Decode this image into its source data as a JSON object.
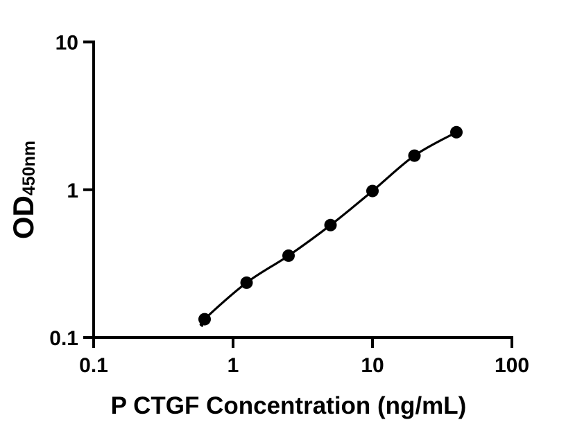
{
  "figure": {
    "background": "#ffffff",
    "ink_color": "#000000"
  },
  "chart_data": {
    "type": "scatter",
    "title": "",
    "xlabel": "P CTGF Concentration (ng/mL)",
    "ylabel_main": "OD",
    "ylabel_sub": "450nm",
    "x_scale": "log10",
    "y_scale": "log10",
    "xlim": [
      0.1,
      100
    ],
    "ylim": [
      0.1,
      10
    ],
    "grid": false,
    "legend": null,
    "x_ticks": [
      {
        "value": 0.1,
        "label": "0.1"
      },
      {
        "value": 1,
        "label": "1"
      },
      {
        "value": 10,
        "label": "10"
      },
      {
        "value": 100,
        "label": "100"
      }
    ],
    "y_ticks": [
      {
        "value": 0.1,
        "label": "0.1"
      },
      {
        "value": 1,
        "label": "1"
      },
      {
        "value": 10,
        "label": "10"
      }
    ],
    "points": [
      {
        "x": 0.625,
        "y": 0.133
      },
      {
        "x": 1.25,
        "y": 0.235
      },
      {
        "x": 2.5,
        "y": 0.358
      },
      {
        "x": 5,
        "y": 0.576
      },
      {
        "x": 10,
        "y": 0.98
      },
      {
        "x": 20,
        "y": 1.7
      },
      {
        "x": 40,
        "y": 2.45
      }
    ],
    "curve": {
      "style": "smooth-fit-through-points",
      "tail_point": {
        "x": 0.6,
        "y": 0.12
      }
    },
    "marker": {
      "shape": "circle",
      "color": "#000000"
    },
    "line_color": "#000000"
  }
}
